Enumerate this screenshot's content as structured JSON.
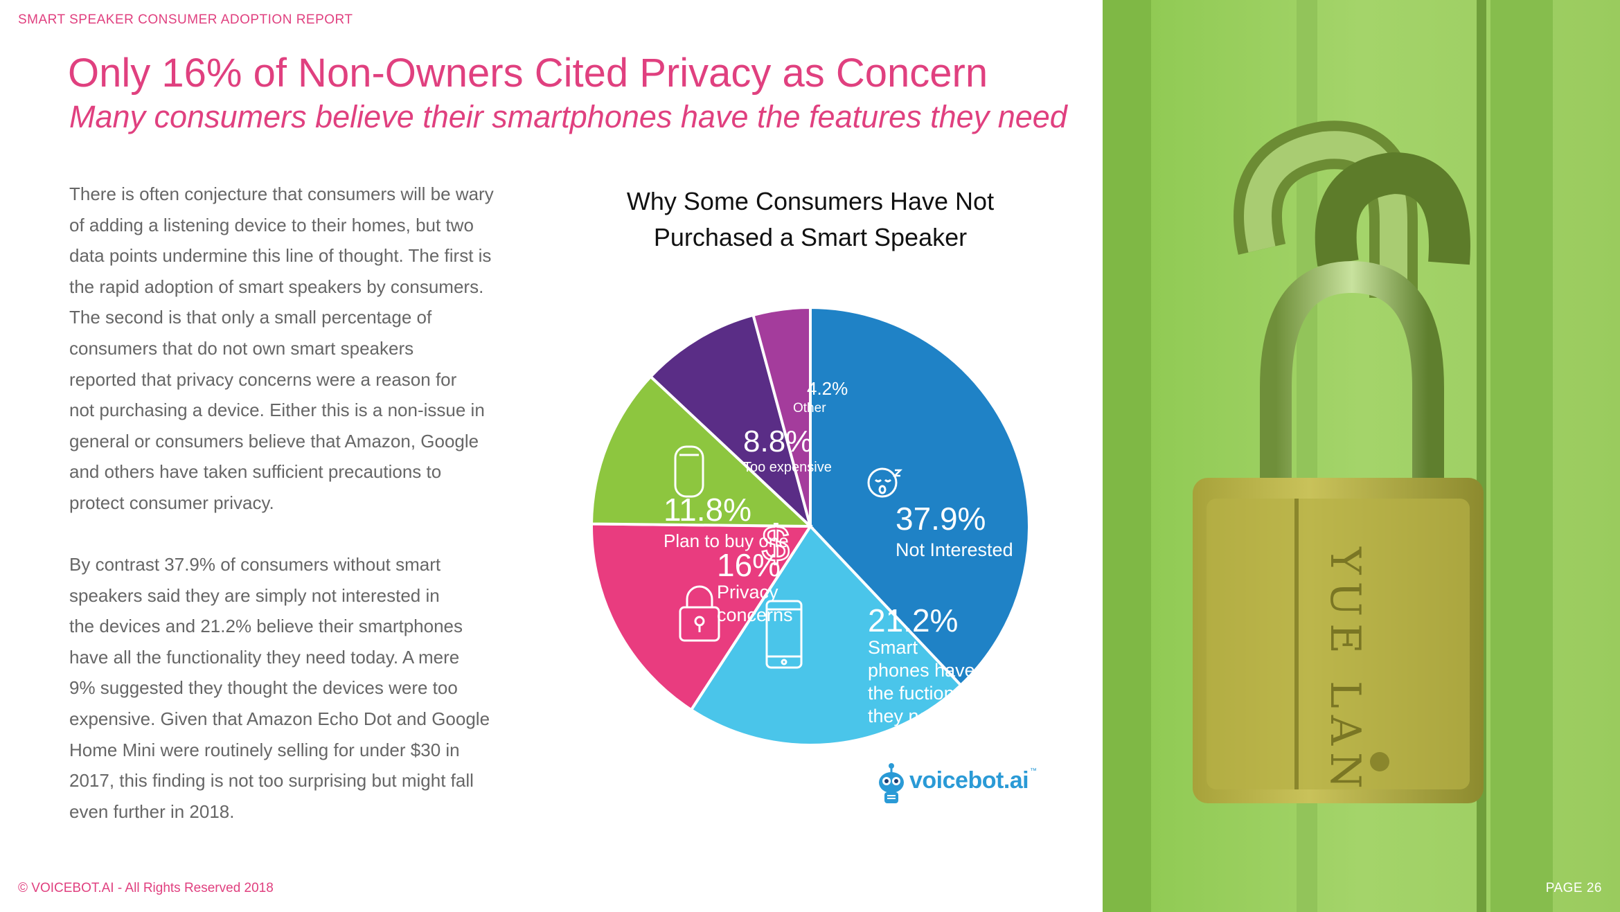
{
  "header": {
    "label": "SMART SPEAKER CONSUMER ADOPTION REPORT"
  },
  "title": "Only 16% of Non-Owners Cited Privacy as Concern",
  "subtitle": "Many consumers believe their smartphones have the features they need",
  "body": {
    "lines_p1": [
      "There is often conjecture that consumers will be wary",
      "of adding a listening device to their homes, but two",
      "data points undermine this line of thought. The first is",
      "the rapid adoption of smart speakers by consumers.",
      "The second is that only a small percentage of",
      "consumers that do not own smart speakers",
      "reported that privacy concerns were a reason for",
      "not purchasing a device. Either this is a non-issue in",
      "general or consumers believe that Amazon, Google",
      "and others have taken sufficient precautions to",
      "protect consumer privacy."
    ],
    "lines_p2": [
      "By contrast 37.9% of consumers without smart",
      "speakers said they are simply not interested in",
      "the devices and 21.2% believe their smartphones",
      "have all the functionality they need today. A mere",
      "9% suggested they thought the devices were too",
      "expensive. Given that Amazon Echo Dot and Google",
      "Home Mini were routinely selling for under $30 in",
      "2017, this finding is not too surprising but might fall",
      "even further in 2018."
    ]
  },
  "footer": {
    "copyright": "© VOICEBOT.AI - All Rights Reserved 2018",
    "page": "PAGE 26"
  },
  "logo": {
    "name": "voicebot",
    "suffix": ".ai",
    "tm": "™",
    "icon": "robot-mic-icon"
  },
  "colors": {
    "accent": "#e0407f",
    "not_interested": "#1f82c6",
    "smartphones": "#4ac5ea",
    "privacy": "#e93c7f",
    "plan_to_buy": "#8dc63f",
    "too_expensive": "#5a2d86",
    "other": "#a43c9c",
    "photo_tint": "#8dc63f"
  },
  "chart_data": {
    "type": "pie",
    "title": "Why Some Consumers Have Not Purchased a Smart Speaker",
    "title_lines": [
      "Why Some Consumers Have Not",
      "Purchased a Smart Speaker"
    ],
    "slices": [
      {
        "value": 37.9,
        "value_label": "37.9%",
        "label_lines": [
          "Not Interested"
        ],
        "color": "#1f82c6",
        "icon": "sleeping-face-icon"
      },
      {
        "value": 21.2,
        "value_label": "21.2%",
        "label_lines": [
          "Smart",
          "phones have",
          "the fuctionality",
          "they need"
        ],
        "color": "#4ac5ea",
        "icon": "smartphone-icon"
      },
      {
        "value": 16.0,
        "value_label": "16%",
        "label_lines": [
          "Privacy",
          "concerns"
        ],
        "color": "#e93c7f",
        "icon": "padlock-icon"
      },
      {
        "value": 11.8,
        "value_label": "11.8%",
        "label_lines": [
          "Plan to buy one"
        ],
        "color": "#8dc63f",
        "icon": "smart-speaker-icon"
      },
      {
        "value": 8.8,
        "value_label": "8.8%",
        "label_lines": [
          "Too expensive"
        ],
        "color": "#5a2d86",
        "icon": "dollar-icon"
      },
      {
        "value": 4.2,
        "value_label": "4.2%",
        "label_lines": [
          "Other"
        ],
        "color": "#a43c9c",
        "icon": ""
      }
    ]
  }
}
